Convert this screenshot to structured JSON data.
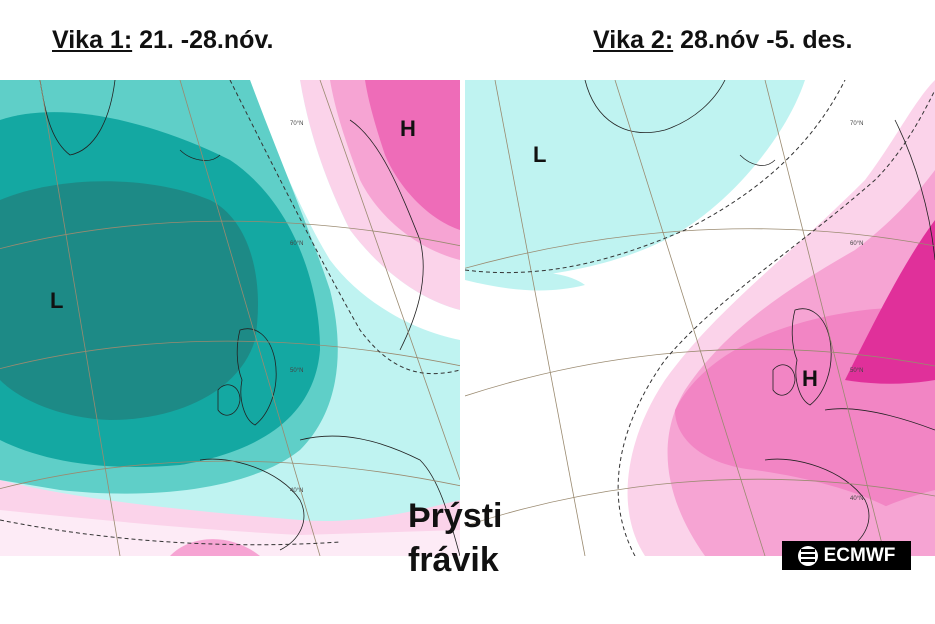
{
  "week1": {
    "label": "Vika 1:",
    "dates": " 21. -28.nóv.",
    "low_marker": "L",
    "high_marker": "H"
  },
  "week2": {
    "label": "Vika 2:",
    "dates": " 28.nóv -5. des.",
    "low_marker": "L",
    "high_marker": "H"
  },
  "anomaly_label": {
    "line1": "Þrýsti",
    "line2": "frávik"
  },
  "logo": {
    "text": "ECMWF",
    "icon": "ecmwf-logo-icon"
  },
  "latitude_labels": [
    "70°N",
    "60°N",
    "50°N",
    "40°N"
  ],
  "colors": {
    "low_dark": "#1d8a86",
    "low_mid": "#14a8a2",
    "low_light": "#5fcfc8",
    "low_pale": "#bff3f1",
    "high_pale": "#fbd3ea",
    "high_light": "#f6a4d3",
    "high_mid": "#ee6cb8",
    "high_dark": "#e0309a"
  }
}
